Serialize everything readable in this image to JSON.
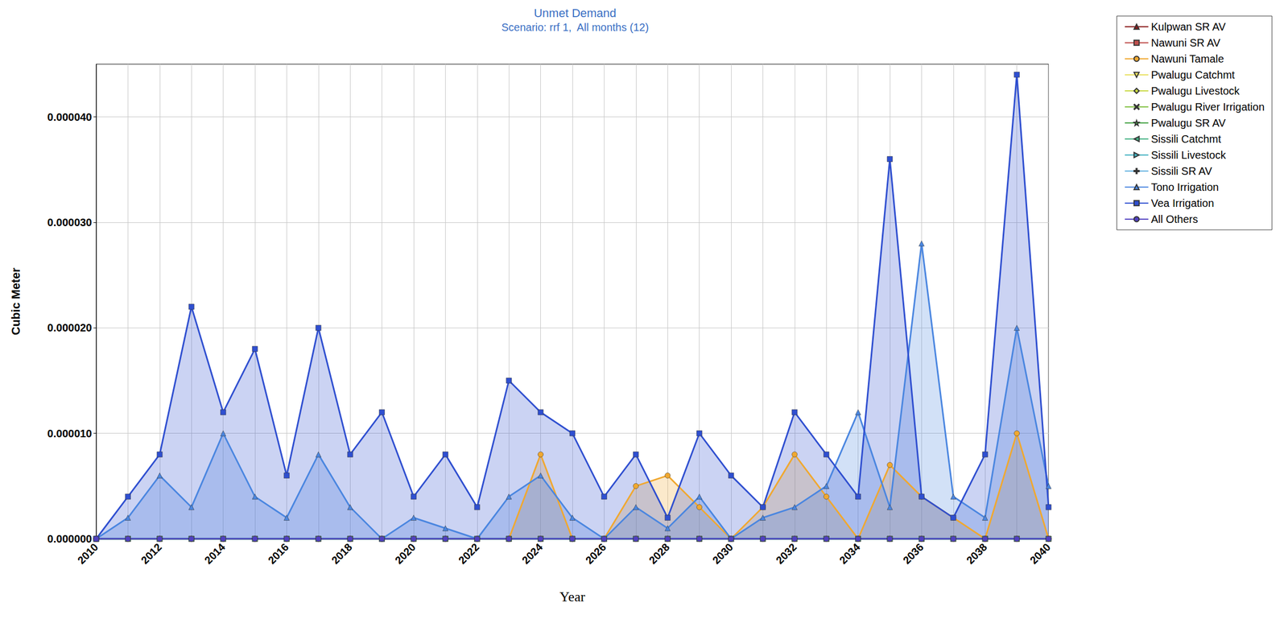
{
  "chart_data": {
    "type": "line",
    "title": "Unmet Demand",
    "subtitle": "Scenario: rrf 1,  All months (12)",
    "x_label": "Year",
    "y_label": "Cubic Meter",
    "categories": [
      "2010",
      null,
      "2012",
      null,
      "2014",
      null,
      "2016",
      null,
      "2018",
      null,
      "2020",
      null,
      "2022",
      null,
      "2024",
      null,
      "2026",
      null,
      "2028",
      null,
      "2030",
      null,
      "2032",
      null,
      "2034",
      null,
      "2036",
      null,
      "2038",
      null,
      "2040"
    ],
    "ylim": [
      0,
      4.5e-05
    ],
    "yticks": [
      {
        "value": 0,
        "label": "0.000000"
      },
      {
        "value": 1e-05,
        "label": "0.000010"
      },
      {
        "value": 2e-05,
        "label": "0.000020"
      },
      {
        "value": 3e-05,
        "label": "0.000030"
      },
      {
        "value": 4e-05,
        "label": "0.000040"
      }
    ],
    "grid": true,
    "legend": "right",
    "series": [
      {
        "name": "Kulpwan SR AV",
        "color": "#8b1c1c",
        "marker": "triangle",
        "values": [
          0,
          0,
          0,
          0,
          0,
          0,
          0,
          0,
          0,
          0,
          0,
          0,
          0,
          0,
          0,
          0,
          0,
          0,
          0,
          0,
          0,
          0,
          0,
          0,
          0,
          0,
          0,
          0,
          0,
          0,
          0
        ]
      },
      {
        "name": "Nawuni SR AV",
        "color": "#c0504d",
        "marker": "square",
        "values": [
          0,
          0,
          0,
          0,
          0,
          0,
          0,
          0,
          0,
          0,
          0,
          0,
          0,
          0,
          0,
          0,
          0,
          0,
          0,
          0,
          0,
          0,
          0,
          0,
          0,
          0,
          0,
          0,
          0,
          0,
          0
        ]
      },
      {
        "name": "Nawuni Tamale",
        "color": "#f0a830",
        "marker": "circle",
        "values": [
          0,
          0,
          0,
          0,
          0,
          0,
          0,
          0,
          0,
          0,
          0,
          0,
          0,
          0,
          8e-06,
          0,
          0,
          5e-06,
          6e-06,
          3e-06,
          0,
          3e-06,
          8e-06,
          4e-06,
          0,
          7e-06,
          4e-06,
          2e-06,
          0,
          1e-05,
          0
        ]
      },
      {
        "name": "Pwalugu Catchmt",
        "color": "#e8e060",
        "marker": "triangle_down",
        "values": [
          0,
          0,
          0,
          0,
          0,
          0,
          0,
          0,
          0,
          0,
          0,
          0,
          0,
          0,
          0,
          0,
          0,
          0,
          0,
          0,
          0,
          0,
          0,
          0,
          0,
          0,
          0,
          0,
          0,
          0,
          0
        ]
      },
      {
        "name": "Pwalugu Livestock",
        "color": "#c8d840",
        "marker": "diamond",
        "values": [
          0,
          0,
          0,
          0,
          0,
          0,
          0,
          0,
          0,
          0,
          0,
          0,
          0,
          0,
          0,
          0,
          0,
          0,
          0,
          0,
          0,
          0,
          0,
          0,
          0,
          0,
          0,
          0,
          0,
          0,
          0
        ]
      },
      {
        "name": "Pwalugu River Irrigation",
        "color": "#80c040",
        "marker": "x",
        "values": [
          0,
          0,
          0,
          0,
          0,
          0,
          0,
          0,
          0,
          0,
          0,
          0,
          0,
          0,
          0,
          0,
          0,
          0,
          0,
          0,
          0,
          0,
          0,
          0,
          0,
          0,
          0,
          0,
          0,
          0,
          0
        ]
      },
      {
        "name": "Pwalugu SR AV",
        "color": "#40a040",
        "marker": "star",
        "values": [
          0,
          0,
          0,
          0,
          0,
          0,
          0,
          0,
          0,
          0,
          0,
          0,
          0,
          0,
          0,
          0,
          0,
          0,
          0,
          0,
          0,
          0,
          0,
          0,
          0,
          0,
          0,
          0,
          0,
          0,
          0
        ]
      },
      {
        "name": "Sissili Catchmt",
        "color": "#40b080",
        "marker": "triangle_left",
        "values": [
          0,
          0,
          0,
          0,
          0,
          0,
          0,
          0,
          0,
          0,
          0,
          0,
          0,
          0,
          0,
          0,
          0,
          0,
          0,
          0,
          0,
          0,
          0,
          0,
          0,
          0,
          0,
          0,
          0,
          0,
          0
        ]
      },
      {
        "name": "Sissili Livestock",
        "color": "#40b0c0",
        "marker": "triangle_right",
        "values": [
          0,
          0,
          0,
          0,
          0,
          0,
          0,
          0,
          0,
          0,
          0,
          0,
          0,
          0,
          0,
          0,
          0,
          0,
          0,
          0,
          0,
          0,
          0,
          0,
          0,
          0,
          0,
          0,
          0,
          0,
          0
        ]
      },
      {
        "name": "Sissili SR AV",
        "color": "#60b0e0",
        "marker": "plus",
        "values": [
          0,
          0,
          0,
          0,
          0,
          0,
          0,
          0,
          0,
          0,
          0,
          0,
          0,
          0,
          0,
          0,
          0,
          0,
          0,
          0,
          0,
          0,
          0,
          0,
          0,
          0,
          0,
          0,
          0,
          0,
          0
        ]
      },
      {
        "name": "Tono Irrigation",
        "color": "#4a86e0",
        "marker": "triangle",
        "values": [
          0,
          2e-06,
          6e-06,
          3e-06,
          1e-05,
          4e-06,
          2e-06,
          8e-06,
          3e-06,
          0,
          2e-06,
          1e-06,
          0,
          4e-06,
          6e-06,
          2e-06,
          0,
          3e-06,
          1e-06,
          4e-06,
          0,
          2e-06,
          3e-06,
          5e-06,
          1.2e-05,
          3e-06,
          2.8e-05,
          4e-06,
          2e-06,
          2e-05,
          5e-06
        ]
      },
      {
        "name": "Vea Irrigation",
        "color": "#2f4fd0",
        "marker": "square",
        "values": [
          0,
          4e-06,
          8e-06,
          2.2e-05,
          1.2e-05,
          1.8e-05,
          6e-06,
          2e-05,
          8e-06,
          1.2e-05,
          4e-06,
          8e-06,
          3e-06,
          1.5e-05,
          1.2e-05,
          1e-05,
          4e-06,
          8e-06,
          2e-06,
          1e-05,
          6e-06,
          3e-06,
          1.2e-05,
          8e-06,
          4e-06,
          3.6e-05,
          4e-06,
          2e-06,
          8e-06,
          4.4e-05,
          3e-06
        ]
      },
      {
        "name": "All Others",
        "color": "#5040c0",
        "marker": "circle",
        "values": [
          0,
          0,
          0,
          0,
          0,
          0,
          0,
          0,
          0,
          0,
          0,
          0,
          0,
          0,
          0,
          0,
          0,
          0,
          0,
          0,
          0,
          0,
          0,
          0,
          0,
          0,
          0,
          0,
          0,
          0,
          0
        ]
      }
    ]
  }
}
